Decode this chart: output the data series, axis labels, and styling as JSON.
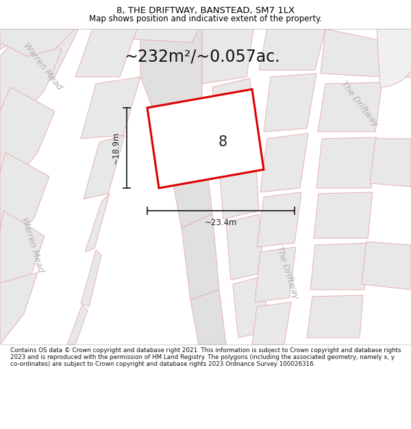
{
  "title": "8, THE DRIFTWAY, BANSTEAD, SM7 1LX",
  "subtitle": "Map shows position and indicative extent of the property.",
  "area_label": "~232m²/~0.057ac.",
  "plot_number": "8",
  "width_label": "~23.4m",
  "height_label": "~18.9m",
  "footer": "Contains OS data © Crown copyright and database right 2021. This information is subject to Crown copyright and database rights 2023 and is reproduced with the permission of HM Land Registry. The polygons (including the associated geometry, namely x, y co-ordinates) are subject to Crown copyright and database rights 2023 Ordnance Survey 100026316.",
  "map_bg": "#ffffff",
  "block_fill": "#e8e8e8",
  "block_edge": "#e8b0b0",
  "road_fill": "#f5f5f5",
  "property_fill": "#e8e8e8",
  "property_edge": "#dd0000",
  "dim_color": "#222222",
  "road_label_color": "#b0b0b0",
  "title_color": "#000000",
  "figsize": [
    6.0,
    6.25
  ],
  "dpi": 100,
  "title_fontsize": 9.5,
  "subtitle_fontsize": 8.5,
  "area_fontsize": 17,
  "label_fontsize": 9,
  "footer_fontsize": 6.3
}
